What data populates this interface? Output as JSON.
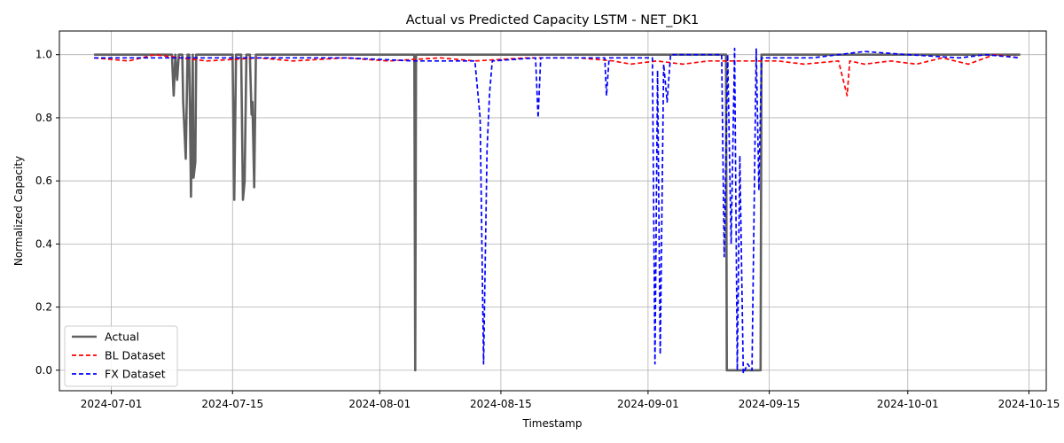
{
  "chart_data": {
    "type": "line",
    "title": "Actual vs Predicted Capacity LSTM - NET_DK1",
    "xlabel": "Timestamp",
    "ylabel": "Normalized Capacity",
    "xlim": [
      "2024-06-25",
      "2024-10-17"
    ],
    "ylim": [
      -0.065,
      1.075
    ],
    "x_ticks": [
      "2024-07-01",
      "2024-07-15",
      "2024-08-01",
      "2024-08-15",
      "2024-09-01",
      "2024-09-15",
      "2024-10-01",
      "2024-10-15"
    ],
    "y_ticks": [
      "0.0",
      "0.2",
      "0.4",
      "0.6",
      "0.8",
      "1.0"
    ],
    "grid": true,
    "legend_position": "lower-left",
    "series": [
      {
        "name": "Actual",
        "color": "#606060",
        "style": "solid",
        "points": [
          [
            "2024-06-29",
            1.0
          ],
          [
            "2024-07-08",
            1.0
          ],
          [
            "2024-07-08.2",
            0.87
          ],
          [
            "2024-07-08.4",
            1.0
          ],
          [
            "2024-07-08.6",
            0.92
          ],
          [
            "2024-07-08.8",
            1.0
          ],
          [
            "2024-07-09.2",
            1.0
          ],
          [
            "2024-07-09.3",
            0.85
          ],
          [
            "2024-07-09.6",
            0.67
          ],
          [
            "2024-07-09.8",
            1.0
          ],
          [
            "2024-07-10.0",
            1.0
          ],
          [
            "2024-07-10.2",
            0.55
          ],
          [
            "2024-07-10.4",
            1.0
          ],
          [
            "2024-07-10.5",
            0.61
          ],
          [
            "2024-07-10.7",
            0.66
          ],
          [
            "2024-07-10.8",
            1.0
          ],
          [
            "2024-07-15.0",
            1.0
          ],
          [
            "2024-07-15.2",
            0.54
          ],
          [
            "2024-07-15.4",
            1.0
          ],
          [
            "2024-07-16.0",
            1.0
          ],
          [
            "2024-07-16.2",
            0.54
          ],
          [
            "2024-07-16.4",
            0.6
          ],
          [
            "2024-07-16.6",
            1.0
          ],
          [
            "2024-07-17.0",
            1.0
          ],
          [
            "2024-07-17.2",
            0.81
          ],
          [
            "2024-07-17.3",
            0.85
          ],
          [
            "2024-07-17.5",
            0.58
          ],
          [
            "2024-07-17.7",
            1.0
          ],
          [
            "2024-08-05.0",
            1.0
          ],
          [
            "2024-08-05.1",
            0.0
          ],
          [
            "2024-08-05.2",
            1.0
          ],
          [
            "2024-09-10.0",
            1.0
          ],
          [
            "2024-09-10.1",
            0.0
          ],
          [
            "2024-09-14.0",
            0.0
          ],
          [
            "2024-09-14.1",
            1.0
          ],
          [
            "2024-10-14",
            1.0
          ]
        ]
      },
      {
        "name": "BL Dataset",
        "color": "#ff0000",
        "style": "dashed",
        "points": [
          [
            "2024-06-29",
            0.99
          ],
          [
            "2024-07-03",
            0.98
          ],
          [
            "2024-07-06",
            1.0
          ],
          [
            "2024-07-09",
            0.99
          ],
          [
            "2024-07-12",
            0.98
          ],
          [
            "2024-07-18",
            0.99
          ],
          [
            "2024-07-22",
            0.98
          ],
          [
            "2024-07-28",
            0.99
          ],
          [
            "2024-08-02",
            0.98
          ],
          [
            "2024-08-08",
            0.99
          ],
          [
            "2024-08-12",
            0.98
          ],
          [
            "2024-08-18",
            0.99
          ],
          [
            "2024-08-24",
            0.99
          ],
          [
            "2024-08-28",
            0.98
          ],
          [
            "2024-08-30",
            0.97
          ],
          [
            "2024-09-02",
            0.98
          ],
          [
            "2024-09-05",
            0.97
          ],
          [
            "2024-09-08",
            0.98
          ],
          [
            "2024-09-12",
            0.98
          ],
          [
            "2024-09-16",
            0.98
          ],
          [
            "2024-09-19",
            0.97
          ],
          [
            "2024-09-23",
            0.98
          ],
          [
            "2024-09-24",
            0.87
          ],
          [
            "2024-09-24.3",
            0.98
          ],
          [
            "2024-09-26",
            0.97
          ],
          [
            "2024-09-29",
            0.98
          ],
          [
            "2024-10-02",
            0.97
          ],
          [
            "2024-10-05",
            0.99
          ],
          [
            "2024-10-08",
            0.97
          ],
          [
            "2024-10-11",
            1.0
          ],
          [
            "2024-10-14",
            0.99
          ]
        ]
      },
      {
        "name": "FX Dataset",
        "color": "#0000ff",
        "style": "dashed",
        "points": [
          [
            "2024-06-29",
            0.99
          ],
          [
            "2024-07-05",
            0.99
          ],
          [
            "2024-07-10",
            0.99
          ],
          [
            "2024-07-20",
            0.99
          ],
          [
            "2024-07-28",
            0.99
          ],
          [
            "2024-08-05",
            0.98
          ],
          [
            "2024-08-12",
            0.98
          ],
          [
            "2024-08-12.6",
            0.8
          ],
          [
            "2024-08-13.0",
            0.02
          ],
          [
            "2024-08-13.4",
            0.7
          ],
          [
            "2024-08-13.7",
            0.88
          ],
          [
            "2024-08-14.0",
            0.98
          ],
          [
            "2024-08-19.0",
            0.99
          ],
          [
            "2024-08-19.3",
            0.8
          ],
          [
            "2024-08-19.6",
            0.99
          ],
          [
            "2024-08-27.0",
            0.99
          ],
          [
            "2024-08-27.2",
            0.87
          ],
          [
            "2024-08-27.5",
            0.99
          ],
          [
            "2024-09-01.5",
            0.99
          ],
          [
            "2024-09-01.8",
            0.02
          ],
          [
            "2024-09-02.1",
            0.95
          ],
          [
            "2024-09-02.4",
            0.05
          ],
          [
            "2024-09-02.8",
            0.97
          ],
          [
            "2024-09-03.2",
            0.85
          ],
          [
            "2024-09-03.6",
            1.0
          ],
          [
            "2024-09-09.5",
            1.0
          ],
          [
            "2024-09-09.8",
            0.36
          ],
          [
            "2024-09-10.2",
            1.0
          ],
          [
            "2024-09-10.6",
            0.4
          ],
          [
            "2024-09-11.0",
            1.02
          ],
          [
            "2024-09-11.3",
            0.0
          ],
          [
            "2024-09-11.6",
            0.68
          ],
          [
            "2024-09-12.0",
            -0.01
          ],
          [
            "2024-09-12.5",
            0.02
          ],
          [
            "2024-09-13.0",
            0.0
          ],
          [
            "2024-09-13.5",
            1.02
          ],
          [
            "2024-09-13.8",
            0.57
          ],
          [
            "2024-09-14.1",
            0.99
          ],
          [
            "2024-09-20",
            0.99
          ],
          [
            "2024-09-26",
            1.01
          ],
          [
            "2024-10-01",
            1.0
          ],
          [
            "2024-10-07",
            0.99
          ],
          [
            "2024-10-10",
            1.0
          ],
          [
            "2024-10-14",
            0.99
          ]
        ]
      }
    ]
  }
}
